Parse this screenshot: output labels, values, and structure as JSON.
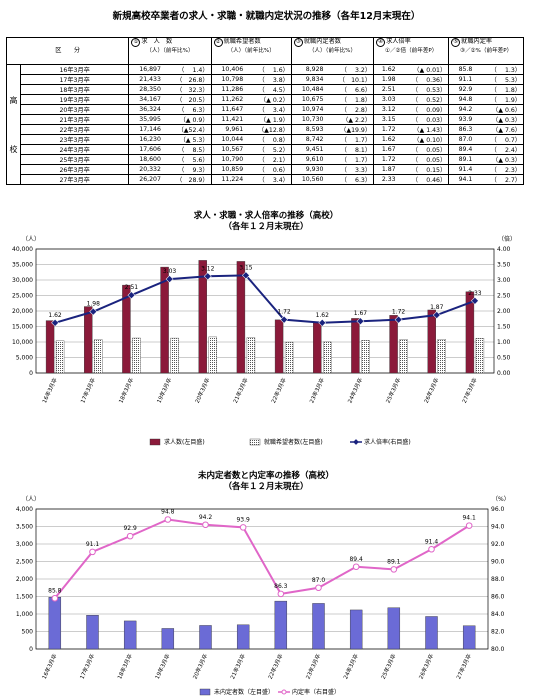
{
  "title": "新規高校卒業者の求人・求職・就職内定状況の推移（各年12月末現在）",
  "table": {
    "header_kubun": "区　　分",
    "columns": [
      {
        "mark": "①",
        "label": "求　人　数",
        "sub": "（人）（前年比%）"
      },
      {
        "mark": "②",
        "label": "就職希望者数",
        "sub": "（人）（前年比%）"
      },
      {
        "mark": "③",
        "label": "就職内定者数",
        "sub": "（人）（前年比%）"
      },
      {
        "mark": "④",
        "label": "求人倍率",
        "sub": "①／②倍（前年差P）"
      },
      {
        "mark": "⑤",
        "label": "就職内定率",
        "sub": "③／②%（前年差P）"
      }
    ],
    "side_labels": [
      "高",
      "校"
    ],
    "rows": [
      {
        "year": "16年3月卒",
        "c1": "16,897",
        "c1p": "（　 1.4）",
        "c2": "10,406",
        "c2p": "（　 1.6）",
        "c3": "8,928",
        "c3p": "（　 3.2）",
        "c4": "1.62",
        "c4p": "（▲ 0.01）",
        "c5": "85.8",
        "c5p": "（　 1.3）"
      },
      {
        "year": "17年3月卒",
        "c1": "21,433",
        "c1p": "（　26.8）",
        "c2": "10,798",
        "c2p": "（　 3.8）",
        "c3": "9,834",
        "c3p": "（　10.1）",
        "c4": "1.98",
        "c4p": "（　 0.36）",
        "c5": "91.1",
        "c5p": "（　 5.3）"
      },
      {
        "year": "18年3月卒",
        "c1": "28,350",
        "c1p": "（　32.3）",
        "c2": "11,286",
        "c2p": "（　 4.5）",
        "c3": "10,484",
        "c3p": "（　 6.6）",
        "c4": "2.51",
        "c4p": "（　 0.53）",
        "c5": "92.9",
        "c5p": "（　 1.8）"
      },
      {
        "year": "19年3月卒",
        "c1": "34,167",
        "c1p": "（　20.5）",
        "c2": "11,262",
        "c2p": "（▲ 0.2）",
        "c3": "10,675",
        "c3p": "（　 1.8）",
        "c4": "3.03",
        "c4p": "（　 0.52）",
        "c5": "94.8",
        "c5p": "（　 1.9）"
      },
      {
        "year": "20年3月卒",
        "c1": "36,324",
        "c1p": "（　 6.3）",
        "c2": "11,647",
        "c2p": "（　 3.4）",
        "c3": "10,974",
        "c3p": "（　 2.8）",
        "c4": "3.12",
        "c4p": "（　 0.09）",
        "c5": "94.2",
        "c5p": "（▲ 0.6）"
      },
      {
        "year": "21年3月卒",
        "c1": "35,995",
        "c1p": "（▲ 0.9）",
        "c2": "11,421",
        "c2p": "（▲ 1.9）",
        "c3": "10,730",
        "c3p": "（▲ 2.2）",
        "c4": "3.15",
        "c4p": "（　 0.03）",
        "c5": "93.9",
        "c5p": "（▲ 0.3）"
      },
      {
        "year": "22年3月卒",
        "c1": "17,146",
        "c1p": "（▲52.4）",
        "c2": "9,961",
        "c2p": "（▲12.8）",
        "c3": "8,593",
        "c3p": "（▲19.9）",
        "c4": "1.72",
        "c4p": "（▲ 1.43）",
        "c5": "86.3",
        "c5p": "（▲ 7.6）"
      },
      {
        "year": "23年3月卒",
        "c1": "16,230",
        "c1p": "（▲ 5.3）",
        "c2": "10,044",
        "c2p": "（　 0.8）",
        "c3": "8,742",
        "c3p": "（　 1.7）",
        "c4": "1.62",
        "c4p": "（▲ 0.10）",
        "c5": "87.0",
        "c5p": "（　 0.7）"
      },
      {
        "year": "24年3月卒",
        "c1": "17,606",
        "c1p": "（　 8.5）",
        "c2": "10,567",
        "c2p": "（　 5.2）",
        "c3": "9,451",
        "c3p": "（　 8.1）",
        "c4": "1.67",
        "c4p": "（　 0.05）",
        "c5": "89.4",
        "c5p": "（　 2.4）"
      },
      {
        "year": "25年3月卒",
        "c1": "18,600",
        "c1p": "（　 5.6）",
        "c2": "10,790",
        "c2p": "（　 2.1）",
        "c3": "9,610",
        "c3p": "（　 1.7）",
        "c4": "1.72",
        "c4p": "（　 0.05）",
        "c5": "89.1",
        "c5p": "（▲ 0.3）"
      },
      {
        "year": "26年3月卒",
        "c1": "20,332",
        "c1p": "（　 9.3）",
        "c2": "10,859",
        "c2p": "（　 0.6）",
        "c3": "9,930",
        "c3p": "（　 3.3）",
        "c4": "1.87",
        "c4p": "（　 0.15）",
        "c5": "91.4",
        "c5p": "（　 2.3）"
      },
      {
        "year": "27年3月卒",
        "c1": "26,207",
        "c1p": "（　28.9）",
        "c2": "11,224",
        "c2p": "（　 3.4）",
        "c3": "10,560",
        "c3p": "（　 6.3）",
        "c4": "2.33",
        "c4p": "（　 0.46）",
        "c5": "94.1",
        "c5p": "（　 2.7）"
      }
    ]
  },
  "chart_data": [
    {
      "type": "bar",
      "title": "求人・求職・求人倍率の推移（高校）",
      "subtitle": "（各年１２月末現在）",
      "ylabel_left": "（人）",
      "ylabel_right": "（倍）",
      "categories": [
        "16年3月卒",
        "17年3月卒",
        "18年3月卒",
        "19年3月卒",
        "20年3月卒",
        "21年3月卒",
        "22年3月卒",
        "23年3月卒",
        "24年3月卒",
        "25年3月卒",
        "26年3月卒",
        "27年3月卒"
      ],
      "ylim_left": [
        0,
        40000
      ],
      "yticks_left": [
        "0",
        "5,000",
        "10,000",
        "15,000",
        "20,000",
        "25,000",
        "30,000",
        "35,000",
        "40,000"
      ],
      "ylim_right": [
        0,
        4.0
      ],
      "yticks_right": [
        "0.00",
        "0.50",
        "1.00",
        "1.50",
        "2.00",
        "2.50",
        "3.00",
        "3.50",
        "4.00"
      ],
      "series": [
        {
          "name": "求人数(左目盛)",
          "kind": "bar",
          "color": "#8b1a3a",
          "values": [
            16897,
            21433,
            28350,
            34167,
            36324,
            35995,
            17146,
            16230,
            17606,
            18600,
            20332,
            26207
          ]
        },
        {
          "name": "就職希望者数(左目盛)",
          "kind": "bar",
          "color": "#ffffff",
          "values": [
            10406,
            10798,
            11286,
            11262,
            11647,
            11421,
            9961,
            10044,
            10567,
            10790,
            10859,
            11224
          ]
        },
        {
          "name": "求人倍率(右目盛)",
          "kind": "line",
          "color": "#1a237e",
          "values": [
            1.62,
            1.98,
            2.51,
            3.03,
            3.12,
            3.15,
            1.72,
            1.62,
            1.67,
            1.72,
            1.87,
            2.33
          ]
        }
      ],
      "data_labels": [
        "1.62",
        "1.98",
        "2.51",
        "3.03",
        "3.12",
        "3.15",
        "1.72",
        "1.62",
        "1.67",
        "1.72",
        "1.87",
        "2.33"
      ],
      "legend": "bottom",
      "grid": true
    },
    {
      "type": "bar",
      "title": "未内定者数と内定率の推移（高校）",
      "subtitle": "（各年１２月末現在）",
      "ylabel_left": "（人）",
      "ylabel_right": "（%）",
      "categories": [
        "16年3月卒",
        "17年3月卒",
        "18年3月卒",
        "19年3月卒",
        "20年3月卒",
        "21年3月卒",
        "22年3月卒",
        "23年3月卒",
        "24年3月卒",
        "25年3月卒",
        "26年3月卒",
        "27年3月卒"
      ],
      "ylim_left": [
        0,
        4000
      ],
      "yticks_left": [
        "0",
        "500",
        "1,000",
        "1,500",
        "2,000",
        "2,500",
        "3,000",
        "3,500",
        "4,000"
      ],
      "ylim_right": [
        80,
        96
      ],
      "yticks_right": [
        "80.0",
        "82.0",
        "84.0",
        "86.0",
        "88.0",
        "90.0",
        "92.0",
        "94.0",
        "96.0"
      ],
      "series": [
        {
          "name": "未内定者数（左目盛）",
          "kind": "bar",
          "color": "#6b6bd6",
          "values": [
            1478,
            964,
            802,
            587,
            673,
            691,
            1368,
            1302,
            1116,
            1180,
            929,
            664
          ]
        },
        {
          "name": "内定率（右目盛）",
          "kind": "line",
          "color": "#e066c8",
          "values": [
            85.8,
            91.1,
            92.9,
            94.8,
            94.2,
            93.9,
            86.3,
            87.0,
            89.4,
            89.1,
            91.4,
            94.1
          ]
        }
      ],
      "data_labels": [
        "85.8",
        "91.1",
        "92.9",
        "94.8",
        "94.2",
        "93.9",
        "86.3",
        "87.0",
        "89.4",
        "89.1",
        "91.4",
        "94.1"
      ],
      "legend": "bottom",
      "grid": true
    }
  ]
}
